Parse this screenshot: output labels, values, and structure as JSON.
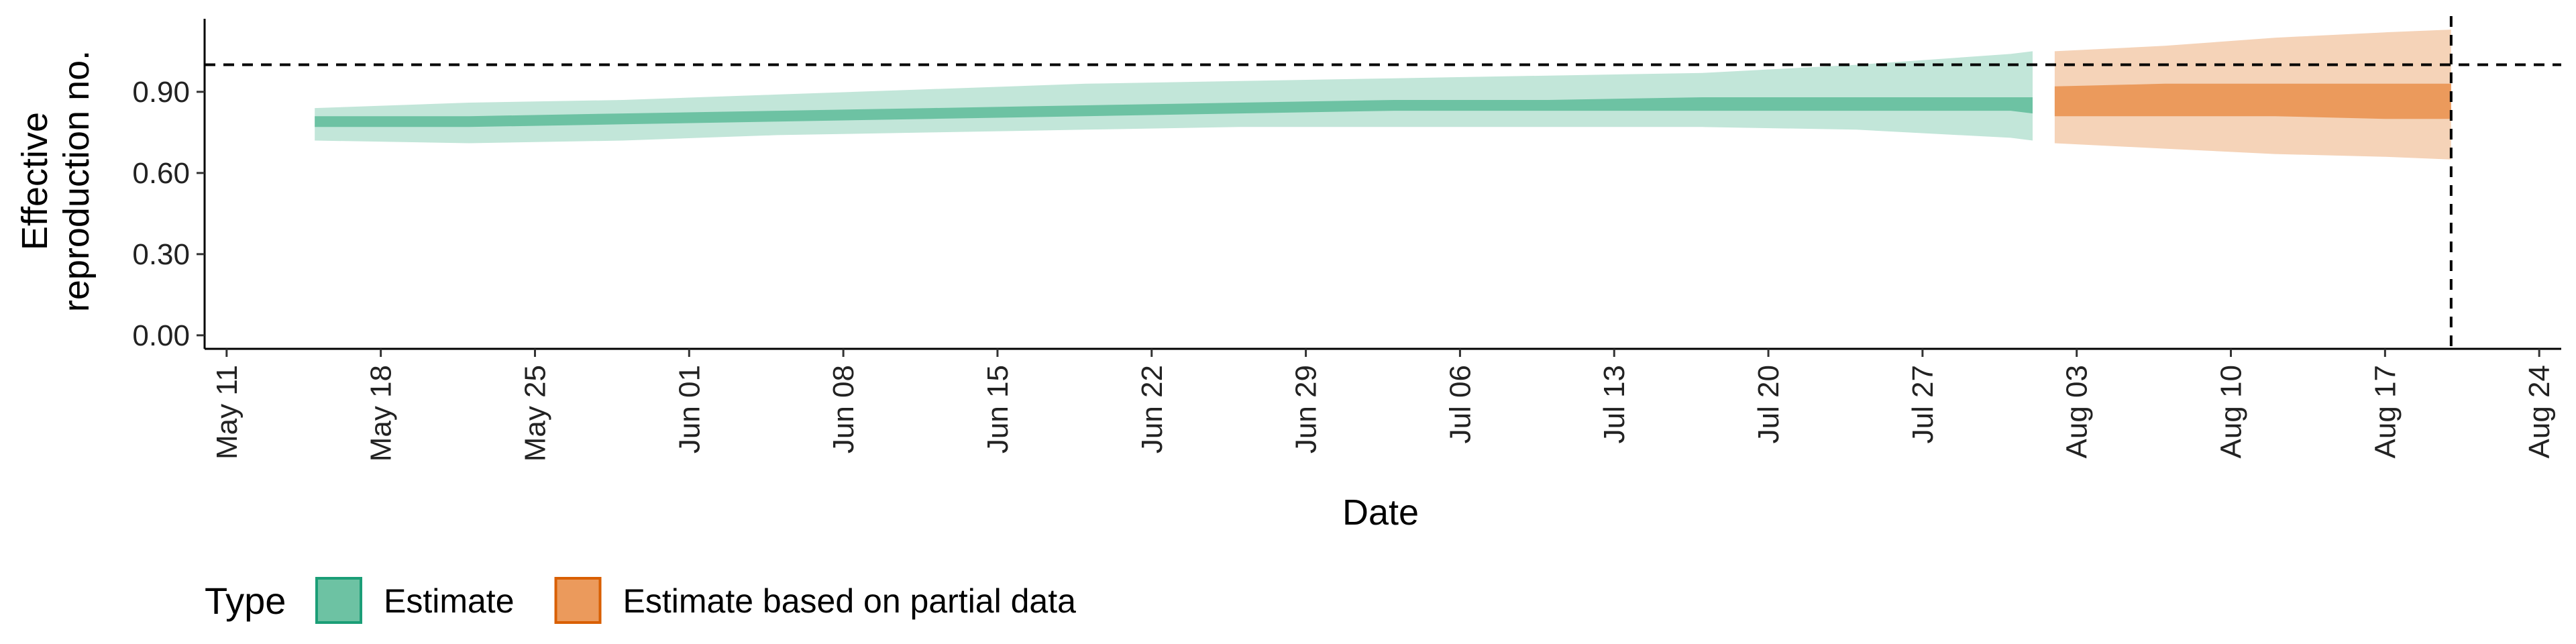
{
  "chart_data": {
    "type": "area",
    "xlabel": "Date",
    "ylabel_line1": "Effective",
    "ylabel_line2": "reproduction no.",
    "xlim": [
      "2021-05-10",
      "2021-08-25"
    ],
    "ylim": [
      -0.05,
      1.17
    ],
    "y_ticks": [
      0.0,
      0.3,
      0.6,
      0.9
    ],
    "y_tick_labels": [
      "0.00",
      "0.30",
      "0.60",
      "0.90"
    ],
    "x_ticks": [
      "2021-05-11",
      "2021-05-18",
      "2021-05-25",
      "2021-06-01",
      "2021-06-08",
      "2021-06-15",
      "2021-06-22",
      "2021-06-29",
      "2021-07-06",
      "2021-07-13",
      "2021-07-20",
      "2021-07-27",
      "2021-08-03",
      "2021-08-10",
      "2021-08-17",
      "2021-08-24"
    ],
    "x_tick_labels": [
      "May 11",
      "May 18",
      "May 25",
      "Jun 01",
      "Jun 08",
      "Jun 15",
      "Jun 22",
      "Jun 29",
      "Jul 06",
      "Jul 13",
      "Jul 20",
      "Jul 27",
      "Aug 03",
      "Aug 10",
      "Aug 17",
      "Aug 24"
    ],
    "reference_hline": 1.0,
    "reference_vline": "2021-08-20",
    "legend": {
      "title": "Type",
      "placement": "bottom-left",
      "entries": [
        {
          "label": "Estimate",
          "fill": "#6dc2a3",
          "border": "#1b9e77"
        },
        {
          "label": "Estimate based on partial data",
          "fill": "#eb9a5c",
          "border": "#d95f02"
        }
      ]
    },
    "series": [
      {
        "name": "Estimate",
        "color": "#1b9e77",
        "points": [
          {
            "date": "2021-05-15",
            "inner_lower": 0.77,
            "inner_upper": 0.81,
            "outer_lower": 0.72,
            "outer_upper": 0.84
          },
          {
            "date": "2021-05-22",
            "inner_lower": 0.77,
            "inner_upper": 0.81,
            "outer_lower": 0.71,
            "outer_upper": 0.86
          },
          {
            "date": "2021-05-29",
            "inner_lower": 0.78,
            "inner_upper": 0.82,
            "outer_lower": 0.72,
            "outer_upper": 0.87
          },
          {
            "date": "2021-06-05",
            "inner_lower": 0.79,
            "inner_upper": 0.83,
            "outer_lower": 0.74,
            "outer_upper": 0.89
          },
          {
            "date": "2021-06-12",
            "inner_lower": 0.8,
            "inner_upper": 0.84,
            "outer_lower": 0.75,
            "outer_upper": 0.91
          },
          {
            "date": "2021-06-19",
            "inner_lower": 0.81,
            "inner_upper": 0.85,
            "outer_lower": 0.76,
            "outer_upper": 0.93
          },
          {
            "date": "2021-06-26",
            "inner_lower": 0.82,
            "inner_upper": 0.86,
            "outer_lower": 0.77,
            "outer_upper": 0.94
          },
          {
            "date": "2021-07-03",
            "inner_lower": 0.83,
            "inner_upper": 0.87,
            "outer_lower": 0.77,
            "outer_upper": 0.95
          },
          {
            "date": "2021-07-10",
            "inner_lower": 0.83,
            "inner_upper": 0.87,
            "outer_lower": 0.77,
            "outer_upper": 0.96
          },
          {
            "date": "2021-07-17",
            "inner_lower": 0.83,
            "inner_upper": 0.88,
            "outer_lower": 0.77,
            "outer_upper": 0.97
          },
          {
            "date": "2021-07-24",
            "inner_lower": 0.83,
            "inner_upper": 0.88,
            "outer_lower": 0.76,
            "outer_upper": 1.0
          },
          {
            "date": "2021-07-31",
            "inner_lower": 0.83,
            "inner_upper": 0.88,
            "outer_lower": 0.73,
            "outer_upper": 1.04
          },
          {
            "date": "2021-08-01",
            "inner_lower": 0.82,
            "inner_upper": 0.88,
            "outer_lower": 0.72,
            "outer_upper": 1.05
          }
        ]
      },
      {
        "name": "Estimate based on partial data",
        "color": "#d95f02",
        "points": [
          {
            "date": "2021-08-02",
            "inner_lower": 0.81,
            "inner_upper": 0.92,
            "outer_lower": 0.71,
            "outer_upper": 1.05
          },
          {
            "date": "2021-08-07",
            "inner_lower": 0.81,
            "inner_upper": 0.93,
            "outer_lower": 0.69,
            "outer_upper": 1.07
          },
          {
            "date": "2021-08-12",
            "inner_lower": 0.81,
            "inner_upper": 0.93,
            "outer_lower": 0.67,
            "outer_upper": 1.1
          },
          {
            "date": "2021-08-17",
            "inner_lower": 0.8,
            "inner_upper": 0.93,
            "outer_lower": 0.66,
            "outer_upper": 1.12
          },
          {
            "date": "2021-08-20",
            "inner_lower": 0.8,
            "inner_upper": 0.93,
            "outer_lower": 0.65,
            "outer_upper": 1.13
          }
        ]
      }
    ]
  }
}
